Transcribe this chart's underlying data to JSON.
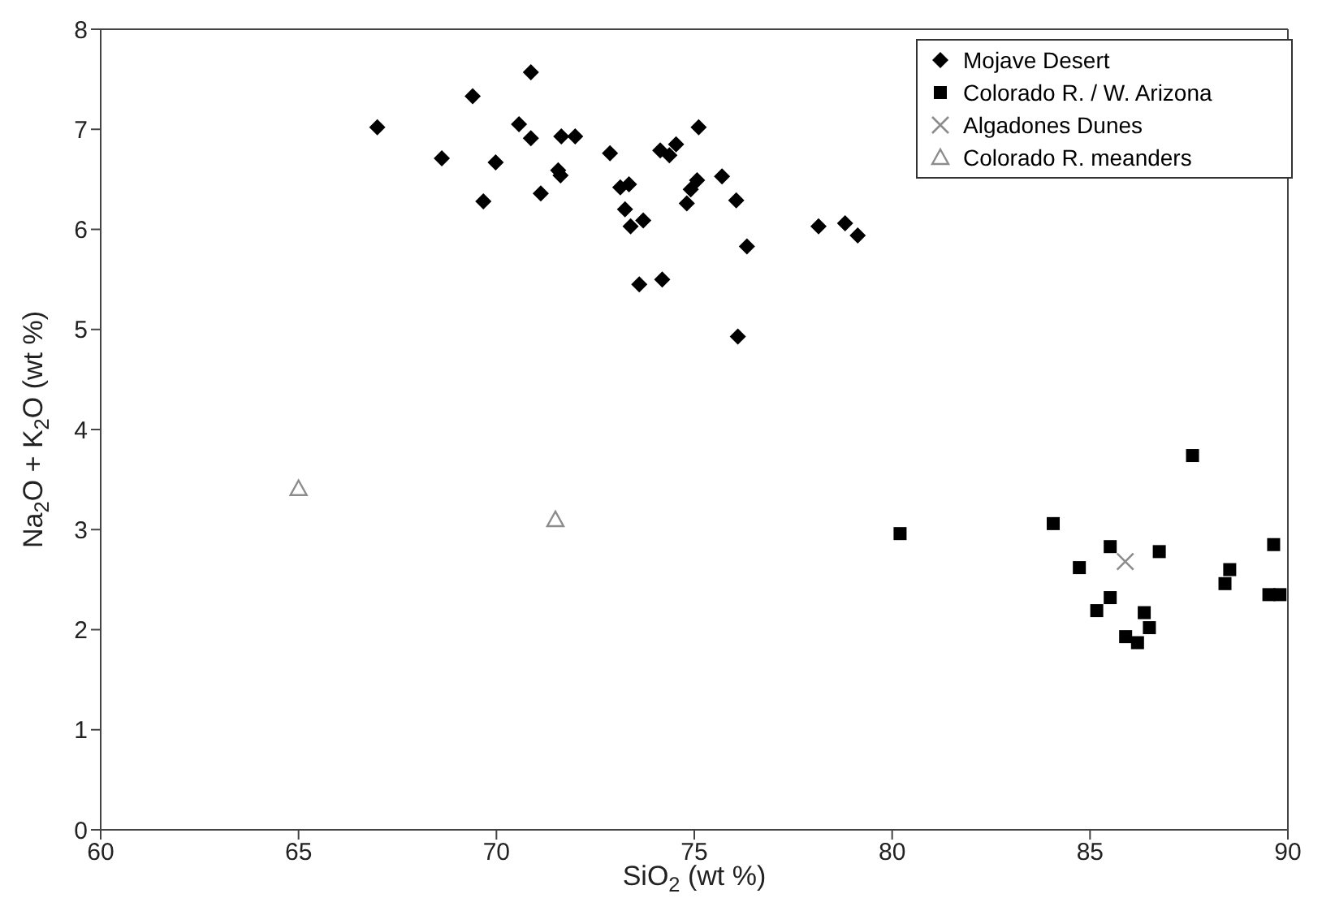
{
  "chart_data": {
    "type": "scatter",
    "xlabel": "SiO$_{2}$ (wt %)",
    "ylabel": "Na$_{2}$O + K$_{2}$O  (wt %)",
    "xlim": [
      60,
      90
    ],
    "ylim": [
      0,
      8
    ],
    "xticks": [
      60,
      65,
      70,
      75,
      80,
      85,
      90
    ],
    "yticks": [
      0,
      1,
      2,
      3,
      4,
      5,
      6,
      7,
      8
    ],
    "grid": false,
    "legend": "top right",
    "series": [
      {
        "name": "Mojave Desert",
        "color": "#000000",
        "marker": "diamond",
        "x": [
          66.99,
          69.4,
          70.87,
          70.57,
          70.87,
          71.64,
          71.99,
          68.62,
          69.98,
          69.67,
          71.12,
          71.56,
          71.62,
          72.87,
          73.13,
          73.35,
          73.25,
          73.39,
          73.71,
          74.14,
          74.37,
          74.54,
          75.11,
          75.07,
          74.91,
          74.81,
          75.7,
          76.06,
          76.33,
          73.61,
          74.19,
          78.14,
          78.81,
          79.13,
          76.1
        ],
        "values": [
          7.02,
          7.33,
          7.57,
          7.05,
          6.91,
          6.93,
          6.93,
          6.71,
          6.67,
          6.28,
          6.36,
          6.59,
          6.54,
          6.76,
          6.42,
          6.45,
          6.2,
          6.03,
          6.09,
          6.79,
          6.74,
          6.85,
          7.02,
          6.49,
          6.4,
          6.26,
          6.53,
          6.29,
          5.83,
          5.45,
          5.5,
          6.03,
          6.06,
          5.94,
          4.93
        ]
      },
      {
        "name": "Colorado R. / W. Arizona",
        "color": "#000000",
        "marker": "square",
        "x": [
          87.59,
          84.07,
          85.51,
          86.75,
          84.73,
          88.53,
          88.41,
          89.64,
          89.52,
          89.8,
          85.51,
          85.17,
          86.37,
          80.2,
          85.9,
          86.2,
          86.5
        ],
        "values": [
          3.74,
          3.06,
          2.83,
          2.78,
          2.62,
          2.6,
          2.46,
          2.85,
          2.35,
          2.35,
          2.32,
          2.19,
          2.17,
          2.96,
          1.93,
          1.87,
          2.02
        ]
      },
      {
        "name": "Algadones Dunes",
        "color": "#8c8c8c",
        "marker": "cross",
        "x": [
          85.89
        ],
        "values": [
          2.68
        ]
      },
      {
        "name": "Colorado R. meanders",
        "color": "#8c8c8c",
        "marker": "triangle",
        "x": [
          65.0,
          71.49
        ],
        "values": [
          3.41,
          3.1
        ]
      }
    ]
  }
}
